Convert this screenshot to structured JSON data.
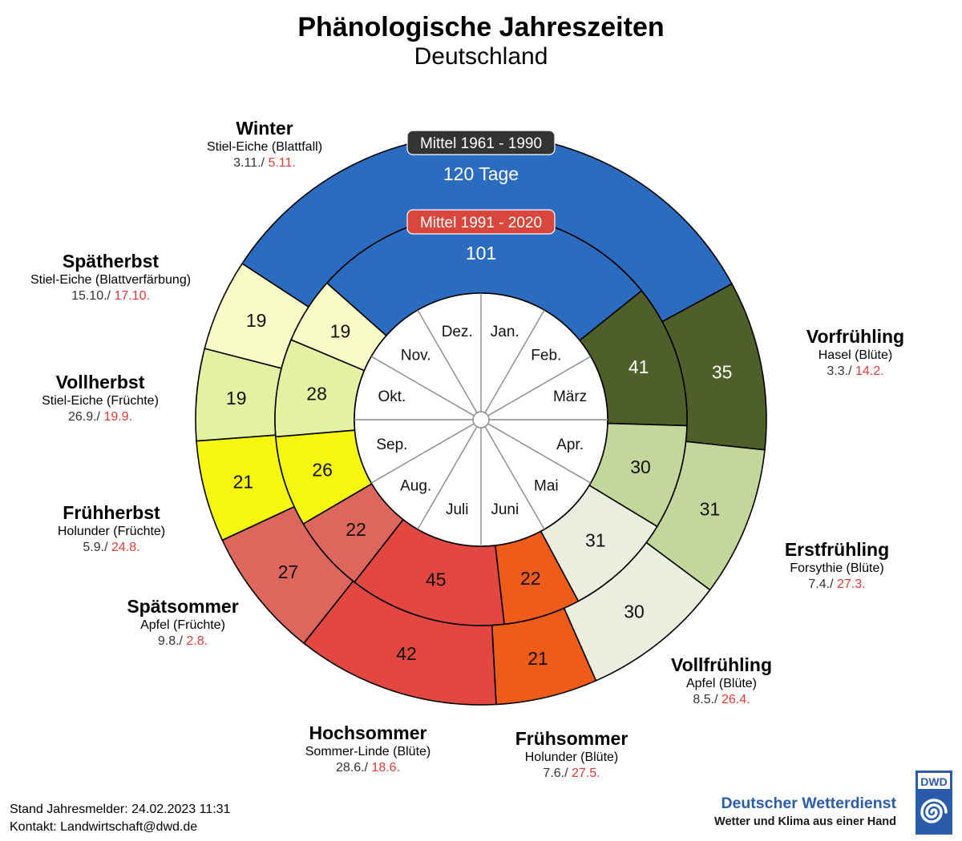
{
  "title": "Phänologische Jahreszeiten",
  "subtitle": "Deutschland",
  "colors": {
    "Winter": "#2b6cc0",
    "Vorfrühling": "#4f5f2a",
    "Erstfrühling": "#c3d69b",
    "Vollfrühling": "#eaeedf",
    "Frühsommer": "#ef5b19",
    "Hochsommer": "#e2483f",
    "Spätsommer": "#dd675d",
    "Frühherbst": "#f5f80e",
    "Vollherbst": "#e4f1a2",
    "Spätherbst": "#fafcc8",
    "label_red": "#e53935",
    "outer_badge": "#333333",
    "inner_badge": "#d9473c"
  },
  "chart_data": {
    "type": "donut",
    "period_labels": {
      "outer": "Mittel 1961 - 1990",
      "inner": "Mittel 1991 - 2020"
    },
    "winter_outer_text": "120 Tage",
    "months": [
      "Jan.",
      "Feb.",
      "März",
      "Apr.",
      "Mai",
      "Juni",
      "Juli",
      "Aug.",
      "Sep.",
      "Okt.",
      "Nov.",
      "Dez."
    ],
    "seasons": [
      {
        "name": "Winter",
        "indicator": "Stiel-Eiche (Blattfall)",
        "start_old": "3.11./",
        "start_new": "5.11.",
        "days_old": 120,
        "days_new": 101,
        "label_old": "120 Tage",
        "label_new": "101"
      },
      {
        "name": "Vorfrühling",
        "indicator": "Hasel (Blüte)",
        "start_old": "3.3./",
        "start_new": "14.2.",
        "days_old": 35,
        "days_new": 41,
        "label_old": "35",
        "label_new": "41"
      },
      {
        "name": "Erstfrühling",
        "indicator": "Forsythie (Blüte)",
        "start_old": "7.4./",
        "start_new": "27.3.",
        "days_old": 31,
        "days_new": 30,
        "label_old": "31",
        "label_new": "30"
      },
      {
        "name": "Vollfrühling",
        "indicator": "Apfel (Blüte)",
        "start_old": "8.5./",
        "start_new": "26.4.",
        "days_old": 30,
        "days_new": 31,
        "label_old": "30",
        "label_new": "31"
      },
      {
        "name": "Frühsommer",
        "indicator": "Holunder (Blüte)",
        "start_old": "7.6./",
        "start_new": "27.5.",
        "days_old": 21,
        "days_new": 22,
        "label_old": "21",
        "label_new": "22"
      },
      {
        "name": "Hochsommer",
        "indicator": "Sommer-Linde (Blüte)",
        "start_old": "28.6./",
        "start_new": "18.6.",
        "days_old": 42,
        "days_new": 45,
        "label_old": "42",
        "label_new": "45"
      },
      {
        "name": "Spätsommer",
        "indicator": "Apfel (Früchte)",
        "start_old": "9.8./",
        "start_new": "2.8.",
        "days_old": 27,
        "days_new": 22,
        "label_old": "27",
        "label_new": "22"
      },
      {
        "name": "Frühherbst",
        "indicator": "Holunder (Früchte)",
        "start_old": "5.9./",
        "start_new": "24.8.",
        "days_old": 21,
        "days_new": 26,
        "label_old": "21",
        "label_new": "26"
      },
      {
        "name": "Vollherbst",
        "indicator": "Stiel-Eiche (Früchte)",
        "start_old": "26.9./",
        "start_new": "19.9.",
        "days_old": 19,
        "days_new": 28,
        "label_old": "19",
        "label_new": "28"
      },
      {
        "name": "Spätherbst",
        "indicator": "Stiel-Eiche (Blattverfärbung)",
        "start_old": "15.10./",
        "start_new": "17.10.",
        "days_old": 19,
        "days_new": 19,
        "label_old": "19",
        "label_new": "19"
      }
    ]
  },
  "footer": {
    "stand": "Stand Jahresmelder: 24.02.2023 11:31",
    "kontakt": "Kontakt: Landwirtschaft@dwd.de"
  },
  "logo": {
    "name": "Deutscher Wetterdienst",
    "slogan": "Wetter und Klima aus einer Hand",
    "abbr": "DWD"
  }
}
